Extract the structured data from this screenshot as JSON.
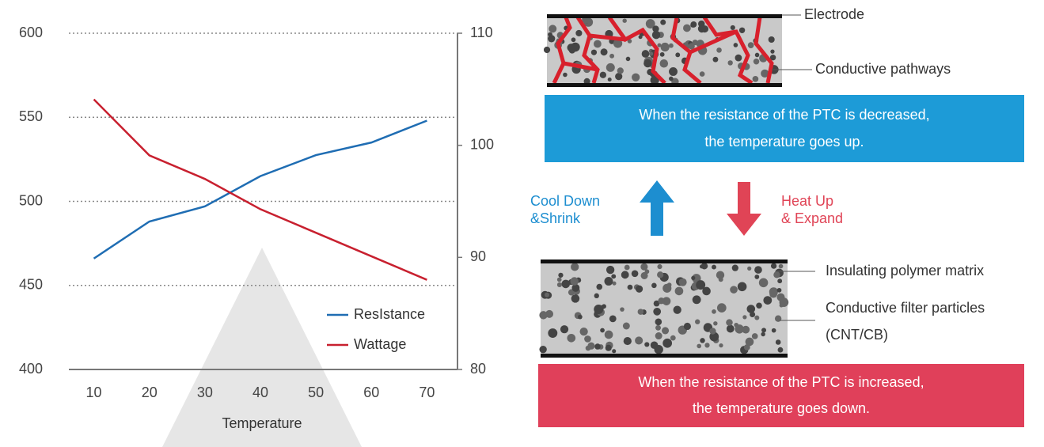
{
  "chart_data": {
    "type": "line",
    "x_label": "Temperature",
    "x": [
      10,
      20,
      30,
      40,
      50,
      60,
      70
    ],
    "xlim": [
      5.5,
      75.5
    ],
    "xticks": [
      10,
      20,
      30,
      40,
      50,
      60,
      70
    ],
    "ylim": [
      400,
      600
    ],
    "yticks": [
      400,
      450,
      500,
      550,
      600
    ],
    "y2lim": [
      80,
      110
    ],
    "y2ticks": [
      80,
      90,
      100,
      110
    ],
    "grid": true,
    "legend": "lower-right",
    "series": [
      {
        "name": "ResIstance",
        "color": "#1f6db3",
        "values": [
          466,
          488,
          497,
          515,
          527.5,
          535,
          548
        ]
      },
      {
        "name": "Wattage",
        "color": "#c8202f",
        "axis": "y2",
        "values": [
          104.1,
          99.1,
          97,
          94.3,
          92.2,
          90.1,
          88
        ]
      }
    ]
  },
  "diagram": {
    "electrode": "Electrode",
    "conductive_pathways": "Conductive pathways",
    "top_box": [
      "When the resistance of the PTC is decreased,",
      "the temperature goes up."
    ],
    "cool_down": [
      "Cool Down",
      "&Shrink"
    ],
    "heat_up": [
      "Heat Up",
      "& Expand"
    ],
    "insulating": "Insulating polymer matrix",
    "particles": [
      "Conductive filter particles",
      "(CNT/CB)"
    ],
    "bottom_box": [
      "When the resistance of the PTC is increased,",
      "the temperature goes down."
    ]
  }
}
